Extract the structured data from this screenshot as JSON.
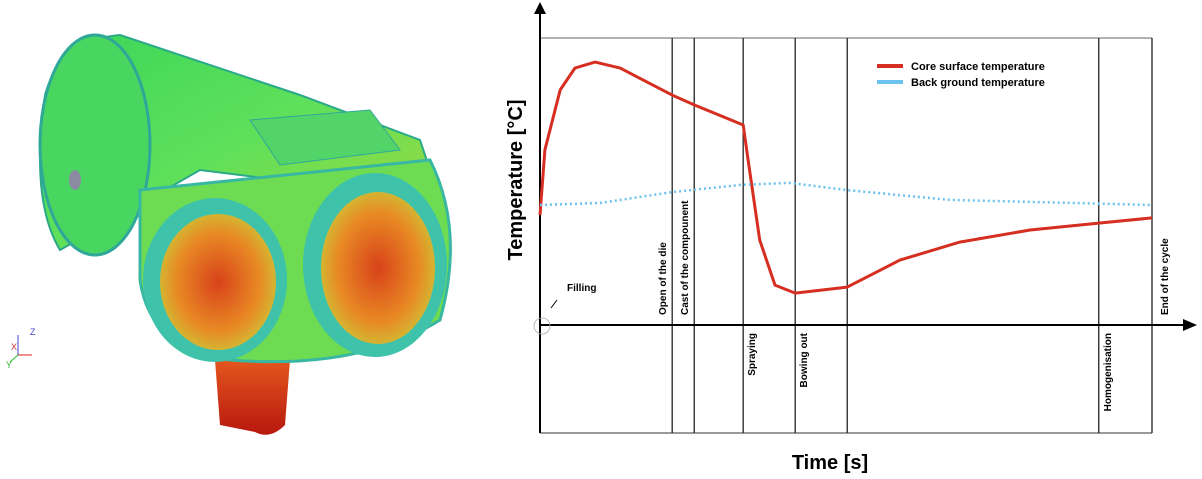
{
  "triad": [
    "X",
    "Y",
    "Z"
  ],
  "chart_data": {
    "type": "line",
    "xlabel": "Time [s]",
    "ylabel": "Temperature [°C]",
    "xlim": [
      0,
      100
    ],
    "ylim": [
      0,
      100
    ],
    "legend": "upper right",
    "series": [
      {
        "name": "Core surface temperature",
        "color": "#d62f22",
        "style": "solid",
        "x": [
          0,
          0.8,
          3.3,
          5.7,
          9.0,
          13.1,
          21.6,
          25.2,
          33.2,
          34.0,
          35.9,
          38.4,
          41.7,
          50.2,
          58.8,
          68.6,
          80.1,
          91.3,
          100
        ],
        "values": [
          38.3,
          61.0,
          81.9,
          89.5,
          91.6,
          89.5,
          80.1,
          76.7,
          69.7,
          57.5,
          29.6,
          13.9,
          11.1,
          13.2,
          22.6,
          28.9,
          33.1,
          35.5,
          37.3
        ]
      },
      {
        "name": "Back ground temperature",
        "color": "#6cc3ef",
        "style": "dotted",
        "x": [
          0,
          9.8,
          21.6,
          32.7,
          40.8,
          50.2,
          67.0,
          100
        ],
        "values": [
          41.8,
          42.5,
          46.3,
          48.8,
          49.5,
          47.0,
          43.6,
          41.8
        ]
      }
    ],
    "phase_lines": [
      21.6,
      25.2,
      33.2,
      41.7,
      50.2,
      91.3,
      100
    ],
    "annotations": [
      "Filling",
      "Open of the die",
      "Cast of the compounent",
      "Spraying",
      "Bowing out",
      "Homogenisation",
      "End of the cycle"
    ]
  }
}
